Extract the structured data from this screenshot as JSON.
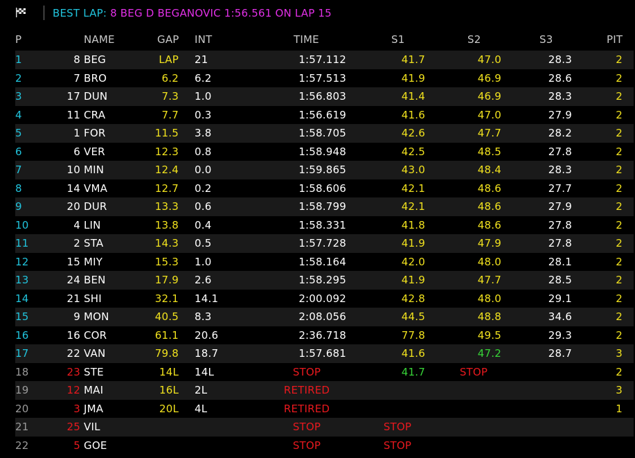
{
  "header": {
    "flag_icon": "checkered-flag-icon",
    "best_lap_label": "BEST LAP:",
    "best_lap_value": "8 BEG D BEGANOVIC 1:56.561 ON LAP 15"
  },
  "columns": {
    "pos": "P",
    "name": "NAME",
    "gap": "GAP",
    "int": "INT",
    "time": "TIME",
    "s1": "S1",
    "s2": "S2",
    "s3": "S3",
    "pit": "PIT"
  },
  "colors": {
    "cyan": "#21c3dc",
    "magenta": "#e130e6",
    "yellow": "#f0e11e",
    "red": "#e8191e",
    "green": "#37d337",
    "row_alt_bg": "#1a1a1a"
  },
  "rows": [
    {
      "pos": "1",
      "num": "8",
      "name": "BEG",
      "gap": "LAP",
      "int": "21",
      "time": "1:57.112",
      "s1": "41.7",
      "s2": "47.0",
      "s3": "28.3",
      "pit": "2"
    },
    {
      "pos": "2",
      "num": "7",
      "name": "BRO",
      "gap": "6.2",
      "int": "6.2",
      "time": "1:57.513",
      "s1": "41.9",
      "s2": "46.9",
      "s3": "28.6",
      "pit": "2"
    },
    {
      "pos": "3",
      "num": "17",
      "name": "DUN",
      "gap": "7.3",
      "int": "1.0",
      "time": "1:56.803",
      "s1": "41.4",
      "s2": "46.9",
      "s3": "28.3",
      "pit": "2"
    },
    {
      "pos": "4",
      "num": "11",
      "name": "CRA",
      "gap": "7.7",
      "int": "0.3",
      "time": "1:56.619",
      "s1": "41.6",
      "s2": "47.0",
      "s3": "27.9",
      "pit": "2"
    },
    {
      "pos": "5",
      "num": "1",
      "name": "FOR",
      "gap": "11.5",
      "int": "3.8",
      "time": "1:58.705",
      "s1": "42.6",
      "s2": "47.7",
      "s3": "28.2",
      "pit": "2"
    },
    {
      "pos": "6",
      "num": "6",
      "name": "VER",
      "gap": "12.3",
      "int": "0.8",
      "time": "1:58.948",
      "s1": "42.5",
      "s2": "48.5",
      "s3": "27.8",
      "pit": "2"
    },
    {
      "pos": "7",
      "num": "10",
      "name": "MIN",
      "gap": "12.4",
      "int": "0.0",
      "time": "1:59.865",
      "s1": "43.0",
      "s2": "48.4",
      "s3": "28.3",
      "pit": "2"
    },
    {
      "pos": "8",
      "num": "14",
      "name": "VMA",
      "gap": "12.7",
      "int": "0.2",
      "time": "1:58.606",
      "s1": "42.1",
      "s2": "48.6",
      "s3": "27.7",
      "pit": "2"
    },
    {
      "pos": "9",
      "num": "20",
      "name": "DUR",
      "gap": "13.3",
      "int": "0.6",
      "time": "1:58.799",
      "s1": "42.1",
      "s2": "48.6",
      "s3": "27.9",
      "pit": "2"
    },
    {
      "pos": "10",
      "num": "4",
      "name": "LIN",
      "gap": "13.8",
      "int": "0.4",
      "time": "1:58.331",
      "s1": "41.8",
      "s2": "48.6",
      "s3": "27.8",
      "pit": "2"
    },
    {
      "pos": "11",
      "num": "2",
      "name": "STA",
      "gap": "14.3",
      "int": "0.5",
      "time": "1:57.728",
      "s1": "41.9",
      "s2": "47.9",
      "s3": "27.8",
      "pit": "2"
    },
    {
      "pos": "12",
      "num": "15",
      "name": "MIY",
      "gap": "15.3",
      "int": "1.0",
      "time": "1:58.164",
      "s1": "42.0",
      "s2": "48.0",
      "s3": "28.1",
      "pit": "2"
    },
    {
      "pos": "13",
      "num": "24",
      "name": "BEN",
      "gap": "17.9",
      "int": "2.6",
      "time": "1:58.295",
      "s1": "41.9",
      "s2": "47.7",
      "s3": "28.5",
      "pit": "2"
    },
    {
      "pos": "14",
      "num": "21",
      "name": "SHI",
      "gap": "32.1",
      "int": "14.1",
      "time": "2:00.092",
      "s1": "42.8",
      "s2": "48.0",
      "s3": "29.1",
      "pit": "2"
    },
    {
      "pos": "15",
      "num": "9",
      "name": "MON",
      "gap": "40.5",
      "int": "8.3",
      "time": "2:08.056",
      "s1": "44.5",
      "s2": "48.8",
      "s3": "34.6",
      "pit": "2"
    },
    {
      "pos": "16",
      "num": "16",
      "name": "COR",
      "gap": "61.1",
      "int": "20.6",
      "time": "2:36.718",
      "s1": "77.8",
      "s2": "49.5",
      "s3": "29.3",
      "pit": "2"
    },
    {
      "pos": "17",
      "num": "22",
      "name": "VAN",
      "gap": "79.8",
      "int": "18.7",
      "time": "1:57.681",
      "s1": "41.6",
      "s2": "47.2",
      "s3": "28.7",
      "pit": "3"
    },
    {
      "pos": "18",
      "num": "23",
      "name": "STE",
      "gap": "14L",
      "int": "14L",
      "time": "STOP",
      "s1": "41.7",
      "s2": "STOP",
      "s3": "",
      "pit": "2"
    },
    {
      "pos": "19",
      "num": "12",
      "name": "MAI",
      "gap": "16L",
      "int": "2L",
      "time": "RETIRED",
      "s1": "",
      "s2": "",
      "s3": "",
      "pit": "3"
    },
    {
      "pos": "20",
      "num": "3",
      "name": "JMA",
      "gap": "20L",
      "int": "4L",
      "time": "RETIRED",
      "s1": "",
      "s2": "",
      "s3": "",
      "pit": "1"
    },
    {
      "pos": "21",
      "num": "25",
      "name": "VIL",
      "gap": "",
      "int": "",
      "time": "STOP",
      "s1": "STOP",
      "s2": "",
      "s3": "",
      "pit": ""
    },
    {
      "pos": "22",
      "num": "5",
      "name": "GOE",
      "gap": "",
      "int": "",
      "time": "STOP",
      "s1": "STOP",
      "s2": "",
      "s3": "",
      "pit": ""
    }
  ]
}
